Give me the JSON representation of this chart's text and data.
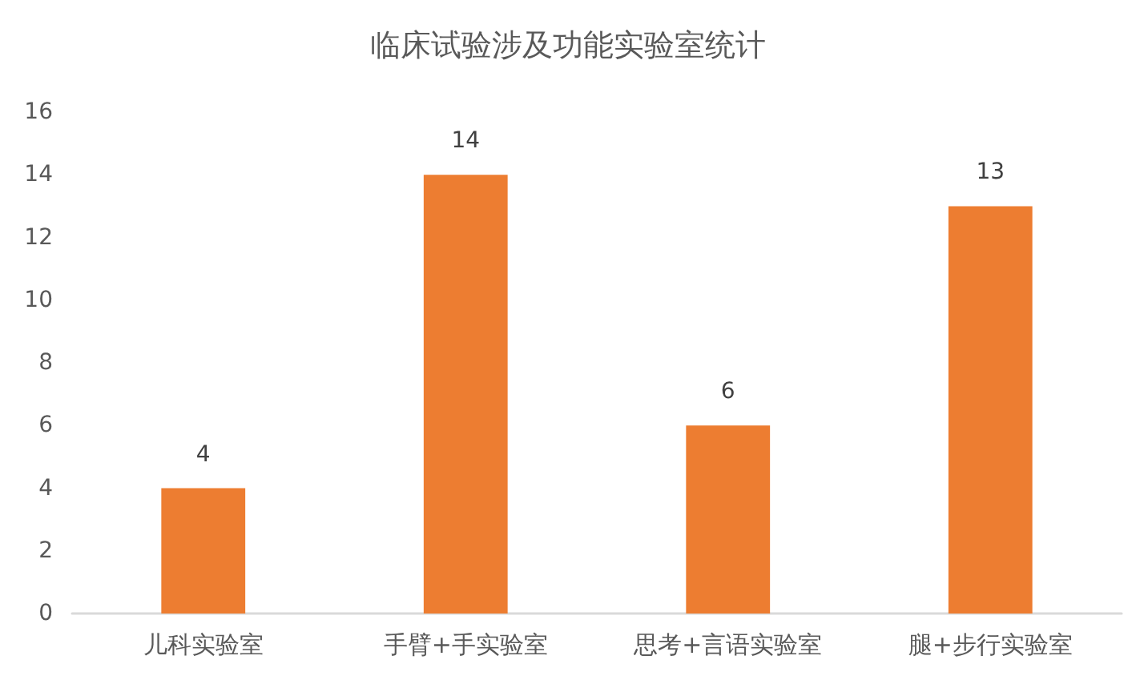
{
  "chart_data": {
    "type": "bar",
    "title": "临床试验涉及功能实验室统计",
    "categories": [
      "儿科实验室",
      "手臂+手实验室",
      "思考+言语实验室",
      "腿+步行实验室"
    ],
    "values": [
      4,
      14,
      6,
      13
    ],
    "color": "#ed7d31",
    "ylim": [
      0,
      16
    ],
    "yticks": [
      0,
      2,
      4,
      6,
      8,
      10,
      12,
      14,
      16
    ],
    "data_labels": true
  }
}
